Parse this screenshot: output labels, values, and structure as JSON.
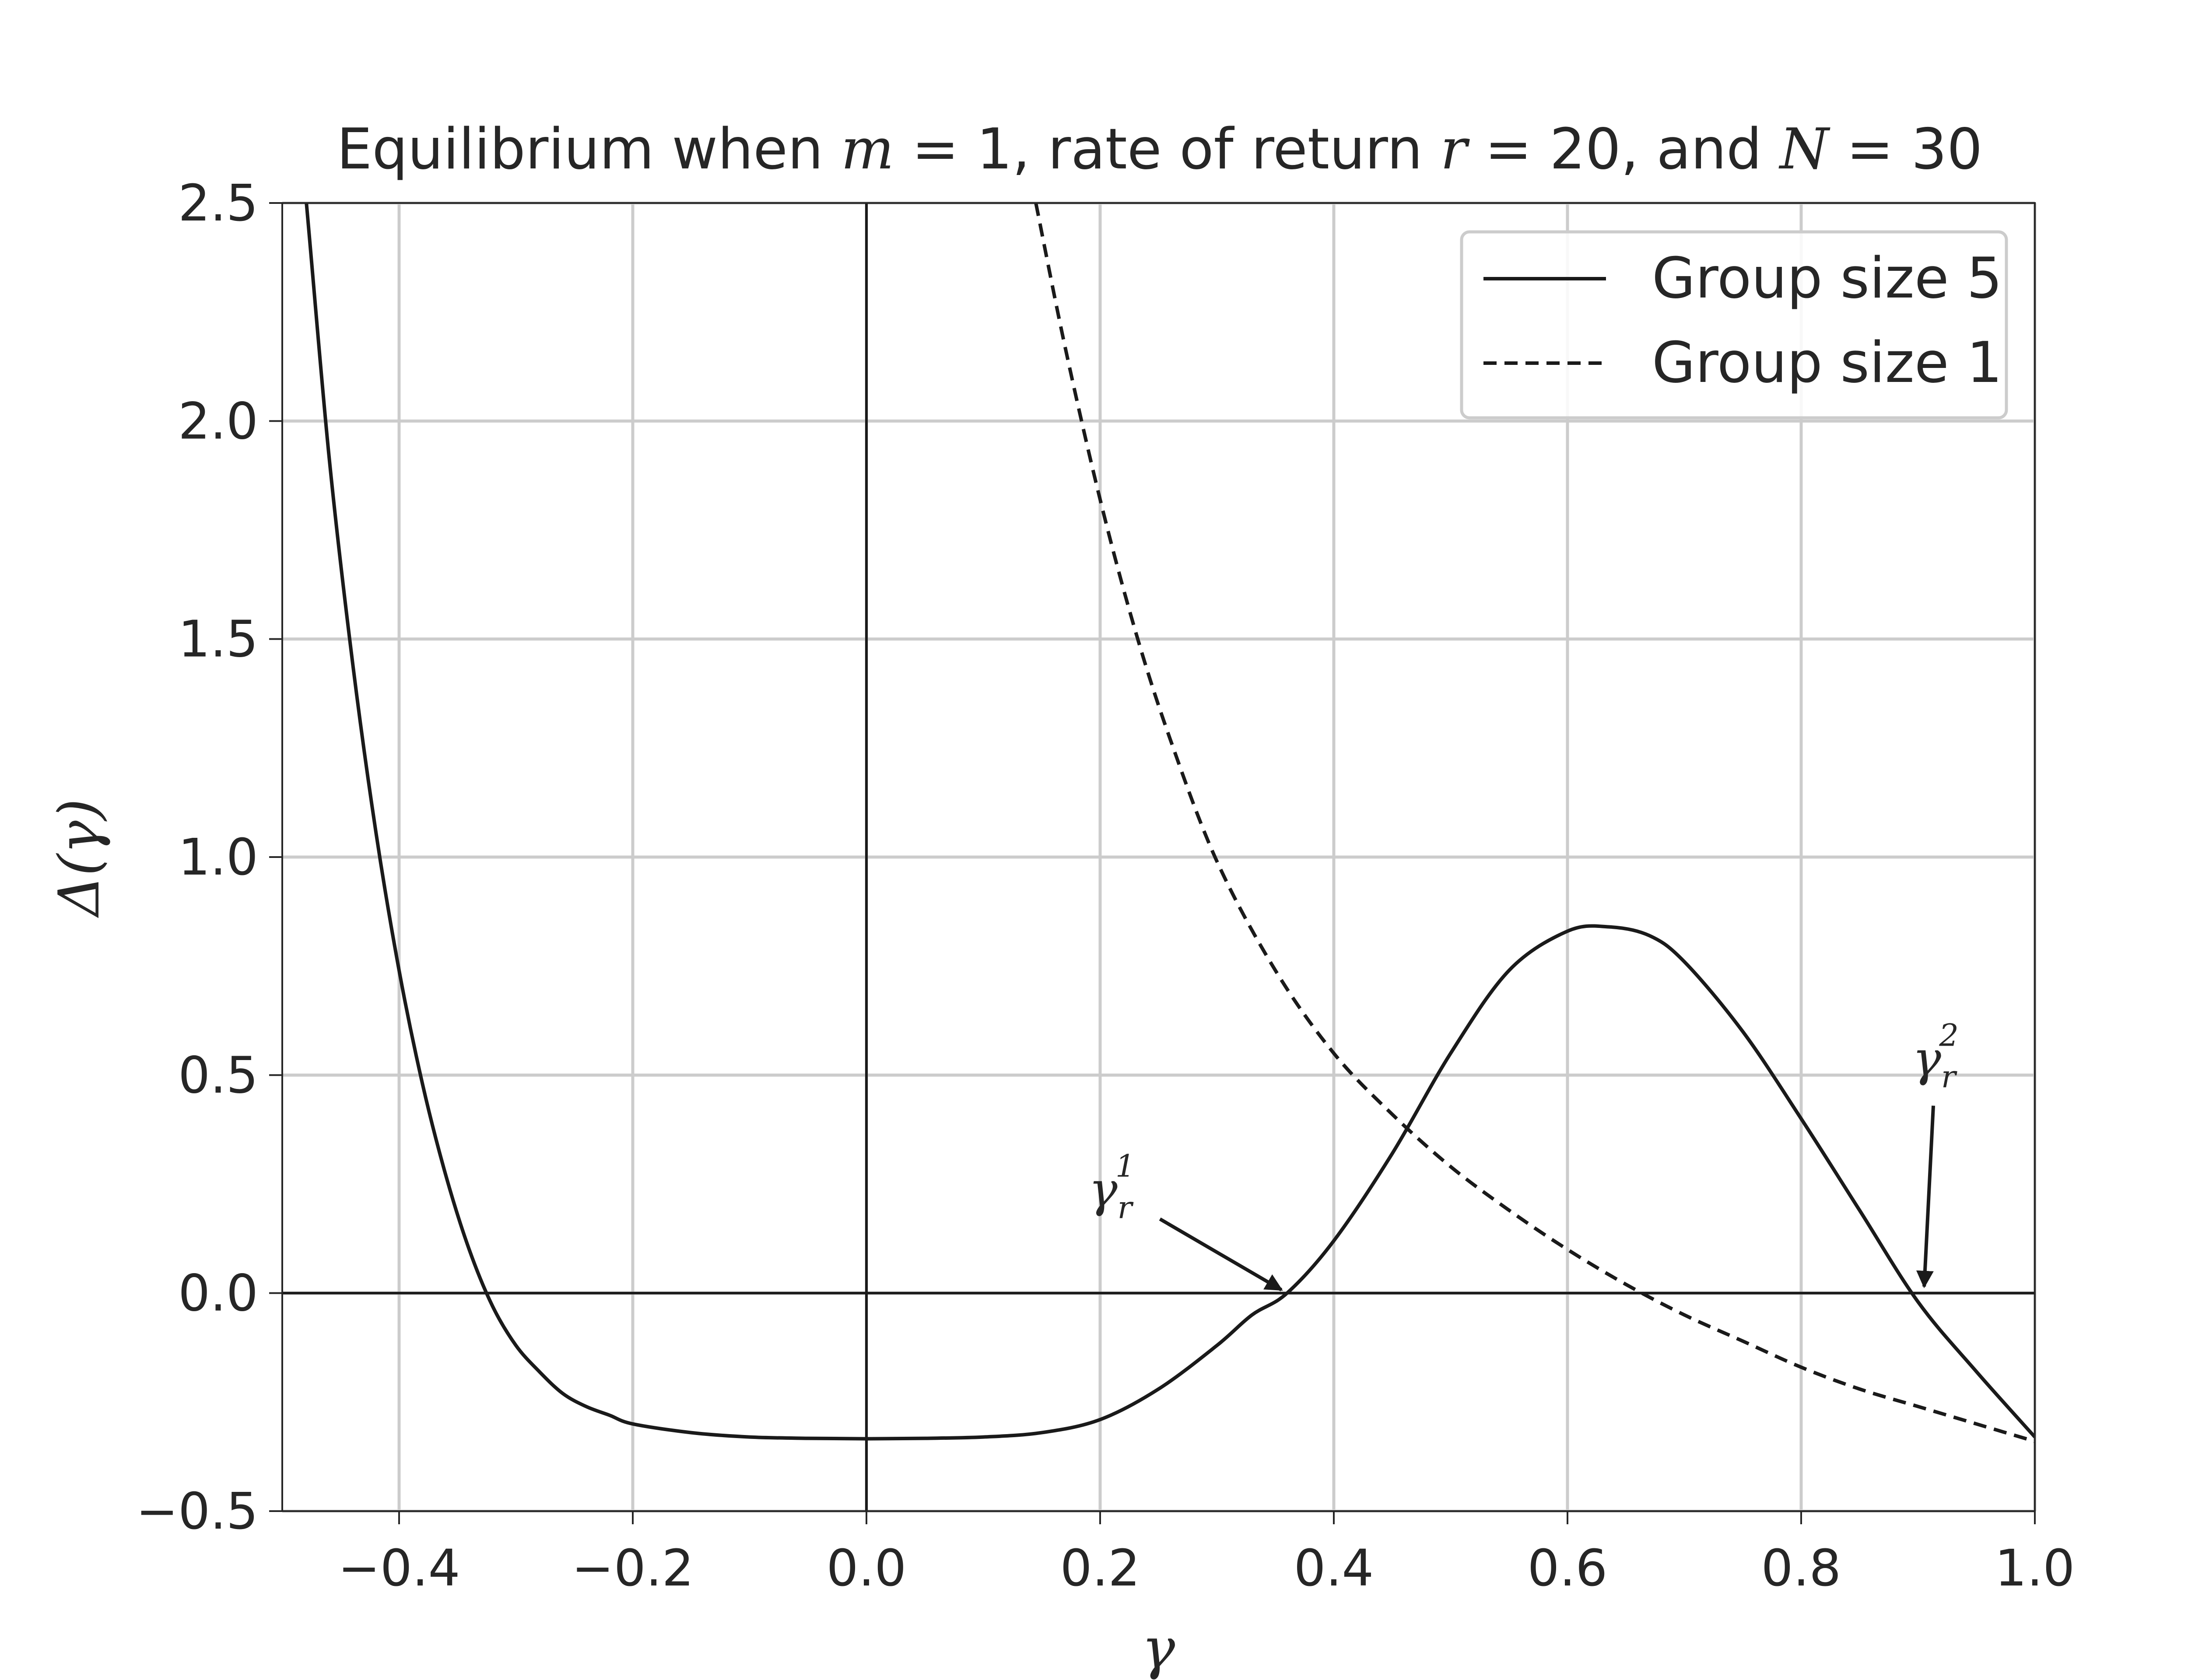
{
  "chart_data": {
    "type": "line",
    "title_parts": [
      {
        "t": "Equilibrium when ",
        "m": false
      },
      {
        "t": "m",
        "m": true
      },
      {
        "t": " = 1, rate of return ",
        "m": false
      },
      {
        "t": "r",
        "m": true
      },
      {
        "t": " = 20, and ",
        "m": false
      },
      {
        "t": "N",
        "m": true
      },
      {
        "t": " = 30",
        "m": false
      }
    ],
    "xlabel": "γ",
    "ylabel": "Δ(γ)",
    "xlim": [
      -0.5,
      1.0
    ],
    "ylim": [
      -0.5,
      2.5
    ],
    "xticks": [
      -0.4,
      -0.2,
      0.0,
      0.2,
      0.4,
      0.6,
      0.8,
      1.0
    ],
    "xtick_labels": [
      "−0.4",
      "−0.2",
      "0.0",
      "0.2",
      "0.4",
      "0.6",
      "0.8",
      "1.0"
    ],
    "yticks": [
      -0.5,
      0.0,
      0.5,
      1.0,
      1.5,
      2.0,
      2.5
    ],
    "ytick_labels": [
      "−0.5",
      "0.0",
      "0.5",
      "1.0",
      "1.5",
      "2.0",
      "2.5"
    ],
    "grid": true,
    "legend_position": "top-right",
    "reference_lines": {
      "horizontal": 0.0,
      "vertical": 0.0
    },
    "series": [
      {
        "name": "Group size 5",
        "style": "solid",
        "color": "#1a1a1a",
        "x": [
          -0.5,
          -0.48,
          -0.46,
          -0.44,
          -0.42,
          -0.4,
          -0.38,
          -0.36,
          -0.34,
          -0.32,
          -0.3,
          -0.28,
          -0.26,
          -0.24,
          -0.22,
          -0.2,
          -0.15,
          -0.1,
          -0.05,
          0.0,
          0.05,
          0.1,
          0.15,
          0.2,
          0.25,
          0.3,
          0.33,
          0.36,
          0.4,
          0.45,
          0.5,
          0.55,
          0.6,
          0.635,
          0.67,
          0.7,
          0.75,
          0.8,
          0.85,
          0.9,
          0.95,
          1.0
        ],
        "y": [
          3.1,
          2.52,
          1.92,
          1.45,
          1.06,
          0.74,
          0.48,
          0.27,
          0.1,
          -0.03,
          -0.12,
          -0.18,
          -0.23,
          -0.26,
          -0.28,
          -0.3,
          -0.32,
          -0.33,
          -0.333,
          -0.334,
          -0.333,
          -0.33,
          -0.32,
          -0.29,
          -0.22,
          -0.12,
          -0.05,
          0.0,
          0.12,
          0.32,
          0.55,
          0.74,
          0.83,
          0.84,
          0.82,
          0.76,
          0.6,
          0.4,
          0.19,
          -0.02,
          -0.18,
          -0.33
        ]
      },
      {
        "name": "Group size 1",
        "style": "dashed",
        "color": "#1a1a1a",
        "x": [
          0.145,
          0.17,
          0.2,
          0.23,
          0.26,
          0.3,
          0.35,
          0.4,
          0.45,
          0.5,
          0.55,
          0.6,
          0.65,
          0.7,
          0.75,
          0.8,
          0.85,
          0.9,
          0.95,
          1.0
        ],
        "y": [
          2.5,
          2.17,
          1.82,
          1.52,
          1.27,
          0.99,
          0.74,
          0.55,
          0.41,
          0.29,
          0.19,
          0.1,
          0.02,
          -0.05,
          -0.11,
          -0.17,
          -0.22,
          -0.26,
          -0.3,
          -0.34
        ]
      }
    ],
    "annotations": [
      {
        "label": "γ",
        "sup": "1",
        "sub": "r",
        "point": [
          0.36,
          0.0
        ],
        "text_pos": [
          0.21,
          0.2
        ]
      },
      {
        "label": "γ",
        "sup": "2",
        "sub": "r",
        "point": [
          0.905,
          0.0
        ],
        "text_pos": [
          0.915,
          0.5
        ]
      }
    ]
  }
}
